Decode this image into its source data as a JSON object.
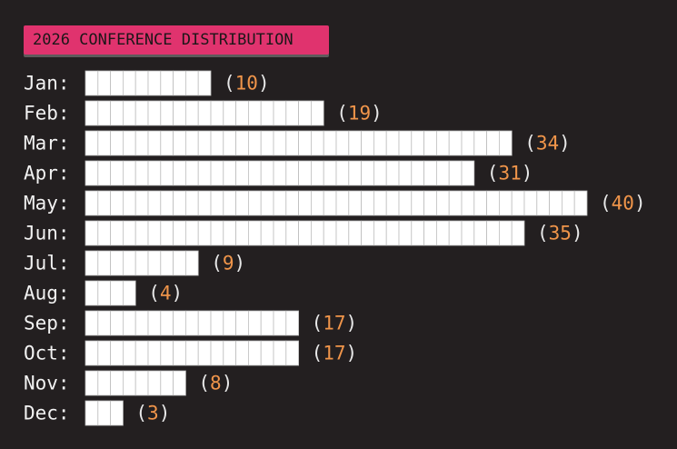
{
  "chart_data": {
    "type": "bar",
    "orientation": "horizontal",
    "title": "2026 CONFERENCE DISTRIBUTION",
    "categories": [
      "Jan:",
      "Feb:",
      "Mar:",
      "Apr:",
      "May:",
      "Jun:",
      "Jul:",
      "Aug:",
      "Sep:",
      "Oct:",
      "Nov:",
      "Dec:"
    ],
    "values": [
      10,
      19,
      34,
      31,
      40,
      35,
      9,
      4,
      17,
      17,
      8,
      3
    ],
    "value_label_format": "(N)",
    "colors": {
      "background": "#231f20",
      "title_bg": "#e0336e",
      "bar_fill": "#ffffff",
      "value_color": "#f0954a",
      "label_color": "#f2f2f2"
    }
  }
}
